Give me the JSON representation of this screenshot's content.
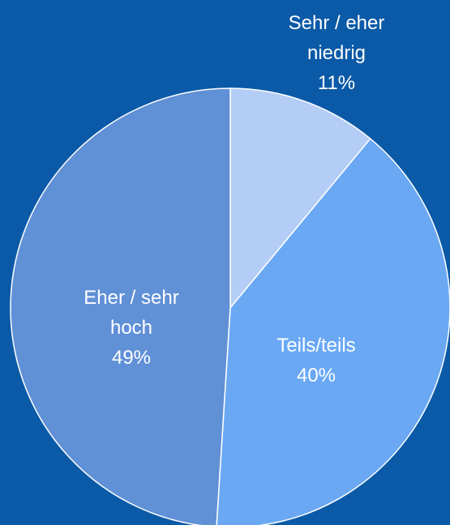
{
  "chart_data": {
    "type": "pie",
    "categories": [
      "Sehr / eher niedrig",
      "Teils/teils",
      "Eher / sehr hoch"
    ],
    "values": [
      11,
      40,
      49
    ],
    "value_labels": [
      "11%",
      "40%",
      "49%"
    ],
    "colors": [
      "#b3cdf6",
      "#6aa8f4",
      "#6090d6"
    ]
  }
}
